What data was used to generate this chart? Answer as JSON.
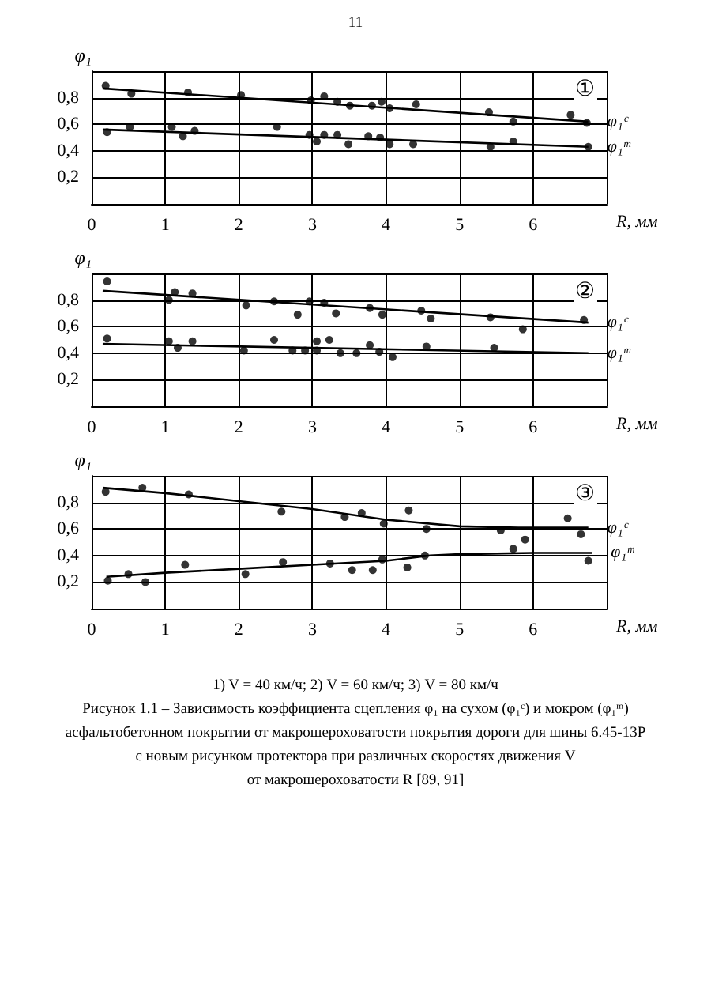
{
  "chart_data": [
    {
      "type": "scatter",
      "title": "①",
      "xlabel": "R, мм",
      "ylabel": "φ₁",
      "annotations": [
        "11"
      ],
      "xlim": [
        0,
        7
      ],
      "xticks": [
        0,
        1,
        2,
        3,
        4,
        5,
        6
      ],
      "ylim": [
        0,
        1
      ],
      "yticks": [
        {
          "value": 0.2,
          "label": "0,2"
        },
        {
          "value": 0.4,
          "label": "0,4"
        },
        {
          "value": 0.6,
          "label": "0,6"
        },
        {
          "value": 0.8,
          "label": "0,8"
        }
      ],
      "grid": true,
      "legend": false,
      "marker": "circle",
      "series": [
        {
          "color": "#000000",
          "x": [
            0.19,
            0.54,
            1.31,
            2.03,
            2.98,
            3.16,
            3.34,
            3.51,
            3.81,
            3.94,
            4.05,
            4.41,
            5.4,
            5.73,
            6.51,
            6.73
          ],
          "values": [
            0.89,
            0.83,
            0.84,
            0.82,
            0.78,
            0.81,
            0.77,
            0.74,
            0.74,
            0.77,
            0.72,
            0.75,
            0.69,
            0.62,
            0.67,
            0.61
          ]
        },
        {
          "color": "#000000",
          "x": [
            0.21,
            0.52,
            1.09,
            1.24,
            1.4,
            2.52,
            2.96,
            3.06,
            3.16,
            3.34,
            3.49,
            3.76,
            3.92,
            4.05,
            4.37,
            5.42,
            5.73,
            6.75
          ],
          "values": [
            0.54,
            0.58,
            0.58,
            0.51,
            0.55,
            0.58,
            0.52,
            0.47,
            0.52,
            0.52,
            0.45,
            0.51,
            0.5,
            0.45,
            0.45,
            0.43,
            0.47,
            0.43
          ]
        },
        {
          "name": "φ₁ᶜ",
          "type": "line",
          "marker": "none",
          "color": "#000000",
          "x": [
            0.15,
            6.75
          ],
          "values": [
            0.87,
            0.62
          ]
        },
        {
          "name": "φ₁ᵐ",
          "type": "line",
          "marker": "none",
          "color": "#000000",
          "x": [
            0.15,
            6.75
          ],
          "values": [
            0.56,
            0.43
          ]
        }
      ]
    },
    {
      "type": "scatter",
      "title": "②",
      "xlabel": "R, мм",
      "ylabel": "φ₁",
      "xlim": [
        0,
        7
      ],
      "xticks": [
        0,
        1,
        2,
        3,
        4,
        5,
        6
      ],
      "ylim": [
        0,
        1
      ],
      "yticks": [
        {
          "value": 0.2,
          "label": "0,2"
        },
        {
          "value": 0.4,
          "label": "0,4"
        },
        {
          "value": 0.6,
          "label": "0,6"
        },
        {
          "value": 0.8,
          "label": "0,8"
        }
      ],
      "grid": true,
      "legend": false,
      "marker": "circle",
      "series": [
        {
          "color": "#000000",
          "x": [
            0.21,
            1.05,
            1.13,
            1.37,
            2.1,
            2.48,
            2.8,
            2.96,
            3.16,
            3.32,
            3.78,
            3.95,
            4.48,
            4.61,
            5.42,
            5.86,
            6.69
          ],
          "values": [
            0.94,
            0.8,
            0.86,
            0.85,
            0.76,
            0.79,
            0.69,
            0.79,
            0.78,
            0.7,
            0.74,
            0.69,
            0.72,
            0.66,
            0.67,
            0.58,
            0.65
          ]
        },
        {
          "color": "#000000",
          "x": [
            0.21,
            1.05,
            1.17,
            1.37,
            2.07,
            2.48,
            2.73,
            2.9,
            3.06,
            3.06,
            3.23,
            3.38,
            3.6,
            3.78,
            3.91,
            4.09,
            4.55,
            5.47
          ],
          "values": [
            0.51,
            0.49,
            0.44,
            0.49,
            0.42,
            0.5,
            0.42,
            0.42,
            0.49,
            0.42,
            0.5,
            0.4,
            0.4,
            0.46,
            0.41,
            0.37,
            0.45,
            0.44
          ]
        },
        {
          "name": "φ₁ᶜ",
          "type": "line",
          "marker": "none",
          "color": "#000000",
          "x": [
            0.15,
            6.75
          ],
          "values": [
            0.87,
            0.63
          ]
        },
        {
          "name": "φ₁ᵐ",
          "type": "line",
          "marker": "none",
          "color": "#000000",
          "x": [
            0.15,
            6.75
          ],
          "values": [
            0.47,
            0.4
          ]
        }
      ]
    },
    {
      "type": "scatter",
      "title": "③",
      "xlabel": "R, мм",
      "ylabel": "φ₁",
      "annotations": [
        "1) V = 40 км/ч; 2) V = 60 км/ч; 3) V = 80 км/ч",
        "Рисунок 1.1 – Зависимость коэффициента сцепления φ₁ на сухом (φ₁ᶜ) и мокром (φ₁ᵐ)",
        "асфальтобетонном покрытии от макрошероховатости покрытия дороги для шины 6.45-13Р",
        "с новым рисунком протектора при различных скоростях движения V",
        "от макрошероховатости R [89, 91]"
      ],
      "xlim": [
        0,
        7
      ],
      "xticks": [
        0,
        1,
        2,
        3,
        4,
        5,
        6
      ],
      "ylim": [
        0,
        1
      ],
      "yticks": [
        {
          "value": 0.2,
          "label": "0,2"
        },
        {
          "value": 0.4,
          "label": "0,4"
        },
        {
          "value": 0.6,
          "label": "0,6"
        },
        {
          "value": 0.8,
          "label": "0,8"
        }
      ],
      "grid": true,
      "legend": false,
      "marker": "circle",
      "series": [
        {
          "color": "#000000",
          "x": [
            0.19,
            0.69,
            1.32,
            2.58,
            3.44,
            3.67,
            3.97,
            4.31,
            4.55,
            5.56,
            5.89,
            6.47,
            6.65
          ],
          "values": [
            0.88,
            0.91,
            0.86,
            0.73,
            0.69,
            0.72,
            0.64,
            0.74,
            0.6,
            0.59,
            0.52,
            0.68,
            0.56
          ]
        },
        {
          "color": "#000000",
          "x": [
            0.22,
            0.5,
            0.73,
            1.27,
            2.09,
            2.6,
            3.24,
            3.54,
            3.82,
            3.95,
            4.29,
            4.53,
            5.73,
            6.75
          ],
          "values": [
            0.21,
            0.26,
            0.2,
            0.33,
            0.26,
            0.35,
            0.34,
            0.29,
            0.29,
            0.37,
            0.31,
            0.4,
            0.45,
            0.36
          ]
        },
        {
          "name": "φ₁ᶜ",
          "type": "line",
          "marker": "none",
          "color": "#000000",
          "x": [
            0.15,
            1,
            2,
            3,
            4,
            5,
            5.8,
            6.75
          ],
          "values": [
            0.91,
            0.87,
            0.81,
            0.75,
            0.67,
            0.62,
            0.61,
            0.61
          ]
        },
        {
          "name": "φ₁ᵐ",
          "type": "line",
          "marker": "none",
          "color": "#000000",
          "x": [
            0.2,
            1,
            2,
            3,
            4,
            4.6,
            5,
            6,
            6.8
          ],
          "values": [
            0.24,
            0.27,
            0.3,
            0.33,
            0.36,
            0.4,
            0.41,
            0.42,
            0.42
          ]
        }
      ]
    }
  ]
}
